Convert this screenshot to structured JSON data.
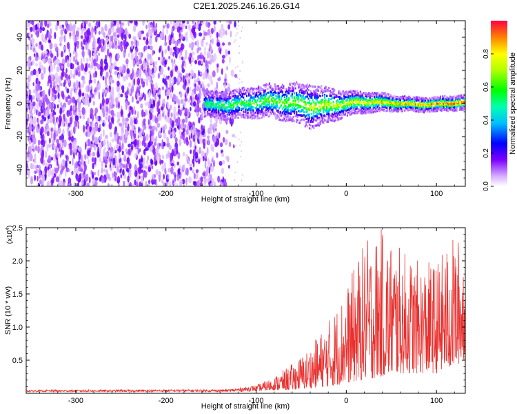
{
  "title": "C2E1.2025.246.16.26.G14",
  "chart_data": [
    {
      "type": "heatmap",
      "title": "C2E1.2025.246.16.26.G14",
      "xlabel": "Height of straight line (km)",
      "ylabel": "Frequency (Hz)",
      "xlim": [
        -355,
        132
      ],
      "ylim": [
        -50,
        50
      ],
      "xticks": [
        -300,
        -200,
        -100,
        0,
        100
      ],
      "yticks": [
        -40,
        -20,
        0,
        20,
        40
      ],
      "colorbar": {
        "label": "Normalized spectral amplitude",
        "range": [
          0.0,
          1.0
        ],
        "ticks": [
          0.0,
          0.2,
          0.4,
          0.6,
          0.8
        ]
      },
      "noise_region_x": [
        -355,
        -135
      ],
      "signal_band": {
        "x_start": -158,
        "center_freq_hz": 0,
        "half_width_hz": [
          [
            -158,
            5
          ],
          [
            -80,
            7
          ],
          [
            -40,
            9
          ],
          [
            0,
            5
          ],
          [
            60,
            3
          ],
          [
            132,
            3
          ]
        ]
      }
    },
    {
      "type": "line",
      "xlabel": "Height of straight line (km)",
      "ylabel": "SNR (10 * v/v)",
      "y_scale_label": "(x10^4)",
      "xlim": [
        -355,
        132
      ],
      "ylim": [
        0,
        2.5
      ],
      "xticks": [
        -300,
        -200,
        -100,
        0,
        100
      ],
      "yticks": [
        0.5,
        1.0,
        1.5,
        2.0,
        2.5
      ],
      "series": [
        {
          "name": "SNR",
          "color": "#e8312f",
          "envelope_x": [
            -355,
            -130,
            -100,
            -80,
            -60,
            -40,
            -20,
            0,
            20,
            40,
            60,
            80,
            100,
            120,
            132
          ],
          "envelope_max": [
            0.05,
            0.06,
            0.12,
            0.25,
            0.45,
            0.7,
            1.1,
            1.6,
            2.3,
            2.5,
            2.2,
            2.0,
            2.0,
            2.4,
            2.3
          ],
          "envelope_min": [
            0.02,
            0.02,
            0.03,
            0.05,
            0.05,
            0.08,
            0.1,
            0.15,
            0.2,
            0.25,
            0.3,
            0.3,
            0.3,
            0.4,
            0.5
          ]
        }
      ]
    }
  ]
}
